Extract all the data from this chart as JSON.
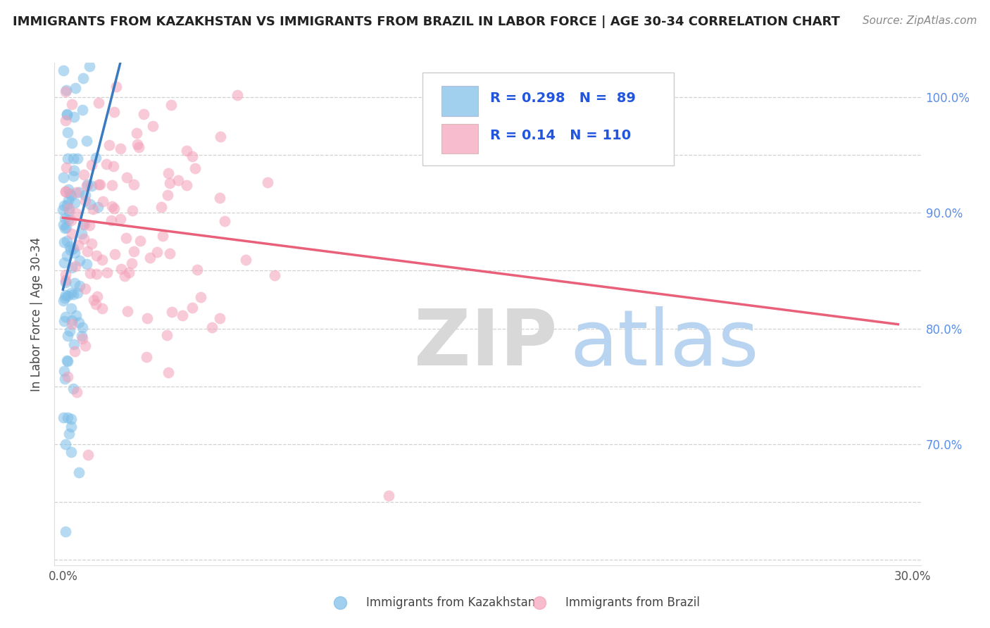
{
  "title": "IMMIGRANTS FROM KAZAKHSTAN VS IMMIGRANTS FROM BRAZIL IN LABOR FORCE | AGE 30-34 CORRELATION CHART",
  "source": "Source: ZipAtlas.com",
  "ylabel": "In Labor Force | Age 30-34",
  "xlim": [
    -0.003,
    0.303
  ],
  "ylim": [
    0.595,
    1.03
  ],
  "xtick_positions": [
    0.0,
    0.05,
    0.1,
    0.15,
    0.2,
    0.25,
    0.3
  ],
  "xticklabels": [
    "0.0%",
    "",
    "",
    "",
    "",
    "",
    "30.0%"
  ],
  "ytick_positions": [
    0.6,
    0.65,
    0.7,
    0.75,
    0.8,
    0.85,
    0.9,
    0.95,
    1.0
  ],
  "ytick_labels_right": [
    "",
    "",
    "70.0%",
    "",
    "80.0%",
    "",
    "90.0%",
    "",
    "100.0%"
  ],
  "kazakhstan_color": "#7abde8",
  "brazil_color": "#f4a0b8",
  "kaz_line_color": "#3a7abf",
  "bra_line_color": "#e8607a",
  "kazakhstan_R": 0.298,
  "kazakhstan_N": 89,
  "brazil_R": 0.14,
  "brazil_N": 110,
  "legend_label_kaz": "Immigrants from Kazakhstan",
  "legend_label_bra": "Immigrants from Brazil",
  "right_tick_color": "#5b8fe8",
  "title_fontsize": 13,
  "source_fontsize": 11,
  "tick_fontsize": 12,
  "legend_fontsize": 14,
  "ylabel_fontsize": 12
}
